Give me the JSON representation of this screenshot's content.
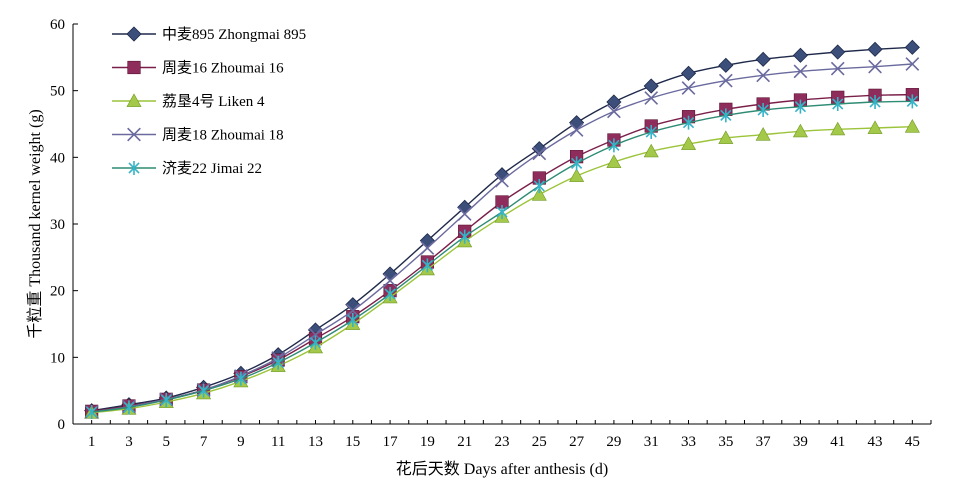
{
  "chart_data": {
    "type": "line",
    "title": "",
    "xlabel": "花后天数 Days after anthesis (d)",
    "ylabel": "千粒重 Thousand kernel weight (g)",
    "x": [
      1,
      3,
      5,
      7,
      9,
      11,
      13,
      15,
      17,
      19,
      21,
      23,
      25,
      27,
      29,
      31,
      33,
      35,
      37,
      39,
      41,
      43,
      45
    ],
    "xlim": [
      0,
      46
    ],
    "ylim": [
      0,
      60
    ],
    "y_ticks": [
      0,
      10,
      20,
      30,
      40,
      50,
      60
    ],
    "grid": false,
    "legend_position": "top-left",
    "series": [
      {
        "name": "中麦895 Zhongmai 895",
        "marker": "diamond",
        "line_color": "#1f2a4a",
        "marker_color": "#3c4f7a",
        "values": [
          2.0,
          2.9,
          3.9,
          5.5,
          7.6,
          10.4,
          14.1,
          17.9,
          22.5,
          27.5,
          32.5,
          37.4,
          41.3,
          45.2,
          48.3,
          50.7,
          52.6,
          53.8,
          54.7,
          55.3,
          55.8,
          56.2,
          56.5
        ]
      },
      {
        "name": "周麦16 Zhoumai 16",
        "marker": "square",
        "line_color": "#7a1f4a",
        "marker_color": "#8e2c5b",
        "values": [
          1.9,
          2.7,
          3.7,
          5.1,
          7.1,
          9.6,
          12.8,
          16.1,
          20.0,
          24.3,
          28.9,
          33.3,
          36.9,
          40.1,
          42.6,
          44.7,
          46.1,
          47.2,
          48.0,
          48.6,
          49.0,
          49.3,
          49.4
        ]
      },
      {
        "name": "荔垦4号 Liken 4",
        "marker": "triangle",
        "line_color": "#9cc43a",
        "marker_color": "#a3c84a",
        "values": [
          1.7,
          2.3,
          3.3,
          4.6,
          6.4,
          8.7,
          11.5,
          15.0,
          19.0,
          23.2,
          27.4,
          31.1,
          34.4,
          37.2,
          39.3,
          40.9,
          42.0,
          42.9,
          43.4,
          43.9,
          44.2,
          44.4,
          44.6
        ]
      },
      {
        "name": "周麦18 Zhoumai 18",
        "marker": "x",
        "line_color": "#6a6a9e",
        "marker_color": "#6a6a9e",
        "values": [
          1.8,
          2.6,
          3.7,
          5.1,
          7.2,
          9.9,
          13.4,
          17.0,
          21.5,
          26.4,
          31.5,
          36.5,
          40.6,
          44.1,
          46.9,
          48.9,
          50.4,
          51.5,
          52.3,
          52.9,
          53.3,
          53.6,
          54.0
        ]
      },
      {
        "name": "济麦22 Jimai 22",
        "marker": "asterisk",
        "line_color": "#2e8b74",
        "marker_color": "#35b3c8",
        "values": [
          1.8,
          2.5,
          3.6,
          5.0,
          6.8,
          9.2,
          12.2,
          15.6,
          19.5,
          23.8,
          28.1,
          31.8,
          35.7,
          39.1,
          41.8,
          43.8,
          45.2,
          46.3,
          47.1,
          47.6,
          48.0,
          48.3,
          48.4
        ]
      }
    ]
  }
}
